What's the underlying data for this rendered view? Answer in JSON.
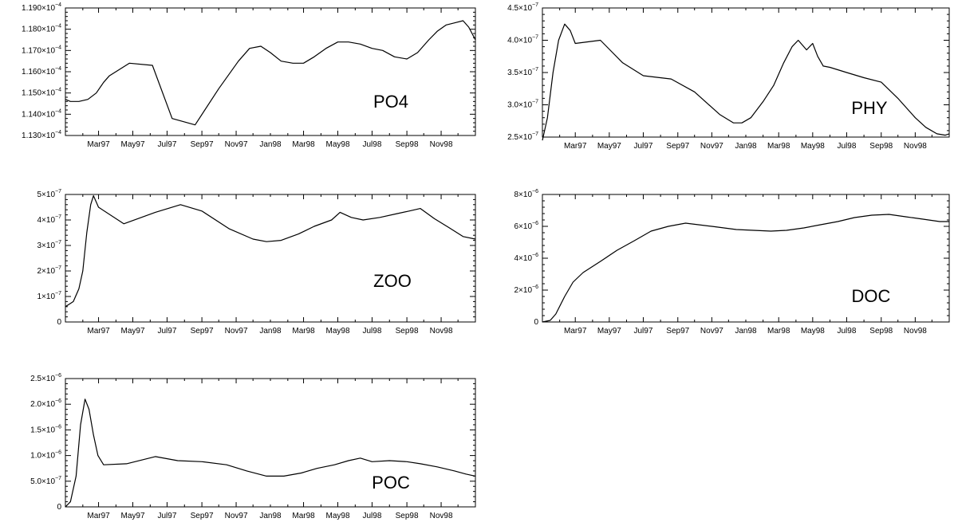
{
  "chart_data": [
    {
      "type": "line",
      "label": "PO4",
      "x_tick_labels": [
        "Mar97",
        "May97",
        "Jul97",
        "Sep97",
        "Nov97",
        "Jan98",
        "Mar98",
        "May98",
        "Jul98",
        "Sep98",
        "Nov98"
      ],
      "y_tick_labels": [
        {
          "m": "1.130",
          "e": "-4"
        },
        {
          "m": "1.140",
          "e": "-4"
        },
        {
          "m": "1.150",
          "e": "-4"
        },
        {
          "m": "1.160",
          "e": "-4"
        },
        {
          "m": "1.170",
          "e": "-4"
        },
        {
          "m": "1.180",
          "e": "-4"
        },
        {
          "m": "1.190",
          "e": "-4"
        }
      ],
      "ylim": [
        0.000113,
        0.000119
      ],
      "xlim": [
        "1997-01-01",
        "1999-01-01"
      ],
      "x": [
        "1997-01-01",
        "1997-01-10",
        "1997-01-25",
        "1997-02-10",
        "1997-02-25",
        "1997-03-10",
        "1997-03-20",
        "1997-04-25",
        "1997-06-05",
        "1997-07-10",
        "1997-08-20",
        "1997-10-01",
        "1997-11-05",
        "1997-11-25",
        "1997-12-15",
        "1998-01-01",
        "1998-01-20",
        "1998-02-10",
        "1998-03-01",
        "1998-03-20",
        "1998-04-10",
        "1998-05-01",
        "1998-05-20",
        "1998-06-10",
        "1998-07-01",
        "1998-07-20",
        "1998-08-10",
        "1998-09-01",
        "1998-09-20",
        "1998-10-10",
        "1998-10-25",
        "1998-11-10",
        "1998-11-25",
        "1998-12-10",
        "1998-12-20",
        "1999-01-01"
      ],
      "y": [
        0.0001147,
        0.0001146,
        0.0001146,
        0.0001147,
        0.000115,
        0.0001155,
        0.0001158,
        0.0001164,
        0.0001163,
        0.0001138,
        0.0001135,
        0.0001152,
        0.0001165,
        0.0001171,
        0.0001172,
        0.0001169,
        0.0001165,
        0.0001164,
        0.0001164,
        0.0001167,
        0.0001171,
        0.0001174,
        0.0001174,
        0.0001173,
        0.0001171,
        0.000117,
        0.0001167,
        0.0001166,
        0.0001169,
        0.0001175,
        0.0001179,
        0.0001182,
        0.0001183,
        0.0001184,
        0.0001181,
        0.0001175
      ]
    },
    {
      "type": "line",
      "label": "PHY",
      "x_tick_labels": [
        "Mar97",
        "May97",
        "Jul97",
        "Sep97",
        "Nov97",
        "Jan98",
        "Mar98",
        "May98",
        "Jul98",
        "Sep98",
        "Nov98"
      ],
      "y_tick_labels": [
        {
          "m": "2.5",
          "e": "-7"
        },
        {
          "m": "3.0",
          "e": "-7"
        },
        {
          "m": "3.5",
          "e": "-7"
        },
        {
          "m": "4.0",
          "e": "-7"
        },
        {
          "m": "4.5",
          "e": "-7"
        }
      ],
      "ylim": [
        2.5e-07,
        4.5e-07
      ],
      "xlim": [
        "1997-01-01",
        "1999-01-01"
      ],
      "x": [
        "1997-01-01",
        "1997-01-10",
        "1997-01-20",
        "1997-01-30",
        "1997-02-10",
        "1997-02-20",
        "1997-03-01",
        "1997-04-15",
        "1997-05-25",
        "1997-07-01",
        "1997-08-20",
        "1997-10-01",
        "1997-11-15",
        "1997-12-10",
        "1997-12-25",
        "1998-01-10",
        "1998-02-01",
        "1998-02-20",
        "1998-03-10",
        "1998-03-25",
        "1998-04-05",
        "1998-04-20",
        "1998-05-01",
        "1998-05-10",
        "1998-05-20",
        "1998-06-01",
        "1998-07-01",
        "1998-08-01",
        "1998-09-01",
        "1998-10-01",
        "1998-11-01",
        "1998-11-20",
        "1998-12-10",
        "1998-12-25",
        "1999-01-01"
      ],
      "y": [
        2.45e-07,
        2.8e-07,
        3.5e-07,
        4e-07,
        4.25e-07,
        4.15e-07,
        3.95e-07,
        4e-07,
        3.65e-07,
        3.45e-07,
        3.4e-07,
        3.2e-07,
        2.85e-07,
        2.72e-07,
        2.72e-07,
        2.8e-07,
        3.05e-07,
        3.3e-07,
        3.65e-07,
        3.9e-07,
        4e-07,
        3.85e-07,
        3.95e-07,
        3.75e-07,
        3.6e-07,
        3.58e-07,
        3.5e-07,
        3.42e-07,
        3.35e-07,
        3.1e-07,
        2.8e-07,
        2.65e-07,
        2.55e-07,
        2.53e-07,
        2.55e-07
      ]
    },
    {
      "type": "line",
      "label": "ZOO",
      "x_tick_labels": [
        "Mar97",
        "May97",
        "Jul97",
        "Sep97",
        "Nov97",
        "Jan98",
        "Mar98",
        "May98",
        "Jul98",
        "Sep98",
        "Nov98"
      ],
      "y_tick_labels": [
        {
          "m": "0",
          "e": ""
        },
        {
          "m": "1×10",
          "e": "-7"
        },
        {
          "m": "2×10",
          "e": "-7"
        },
        {
          "m": "3×10",
          "e": "-7"
        },
        {
          "m": "4×10",
          "e": "-7"
        },
        {
          "m": "5×10",
          "e": "-7"
        }
      ],
      "ylim": [
        0,
        5e-07
      ],
      "xlim": [
        "1997-01-01",
        "1999-01-01"
      ],
      "x": [
        "1997-01-01",
        "1997-01-15",
        "1997-01-25",
        "1997-02-01",
        "1997-02-08",
        "1997-02-15",
        "1997-02-20",
        "1997-03-01",
        "1997-04-15",
        "1997-06-10",
        "1997-07-25",
        "1997-09-01",
        "1997-10-20",
        "1997-12-01",
        "1997-12-25",
        "1998-01-20",
        "1998-02-20",
        "1998-03-20",
        "1998-04-20",
        "1998-05-05",
        "1998-05-25",
        "1998-06-15",
        "1998-07-15",
        "1998-08-15",
        "1998-09-05",
        "1998-09-25",
        "1998-10-20",
        "1998-11-15",
        "1998-12-10",
        "1999-01-01"
      ],
      "y": [
        6e-08,
        8e-08,
        1.3e-07,
        2e-07,
        3.5e-07,
        4.6e-07,
        4.95e-07,
        4.5e-07,
        3.85e-07,
        4.3e-07,
        4.6e-07,
        4.35e-07,
        3.65e-07,
        3.25e-07,
        3.15e-07,
        3.2e-07,
        3.45e-07,
        3.75e-07,
        4e-07,
        4.3e-07,
        4.1e-07,
        4e-07,
        4.1e-07,
        4.25e-07,
        4.35e-07,
        4.45e-07,
        4.05e-07,
        3.7e-07,
        3.35e-07,
        3.25e-07
      ]
    },
    {
      "type": "line",
      "label": "DOC",
      "x_tick_labels": [
        "Mar97",
        "May97",
        "Jul97",
        "Sep97",
        "Nov97",
        "Jan98",
        "Mar98",
        "May98",
        "Jul98",
        "Sep98",
        "Nov98"
      ],
      "y_tick_labels": [
        {
          "m": "0",
          "e": ""
        },
        {
          "m": "2×10",
          "e": "-6"
        },
        {
          "m": "4×10",
          "e": "-6"
        },
        {
          "m": "6×10",
          "e": "-6"
        },
        {
          "m": "8×10",
          "e": "-6"
        }
      ],
      "ylim": [
        0,
        8e-06
      ],
      "xlim": [
        "1997-01-01",
        "1999-01-01"
      ],
      "x": [
        "1997-01-01",
        "1997-01-15",
        "1997-01-25",
        "1997-02-10",
        "1997-02-25",
        "1997-03-15",
        "1997-04-15",
        "1997-05-15",
        "1997-06-15",
        "1997-07-15",
        "1997-08-15",
        "1997-09-15",
        "1997-11-01",
        "1997-12-15",
        "1998-01-15",
        "1998-02-15",
        "1998-03-15",
        "1998-04-15",
        "1998-05-15",
        "1998-06-15",
        "1998-07-15",
        "1998-08-15",
        "1998-09-15",
        "1998-10-15",
        "1998-11-15",
        "1998-12-15",
        "1999-01-01"
      ],
      "y": [
        0,
        1e-07,
        5e-07,
        1.6e-06,
        2.5e-06,
        3.1e-06,
        3.8e-06,
        4.5e-06,
        5.1e-06,
        5.7e-06,
        6e-06,
        6.2e-06,
        6e-06,
        5.8e-06,
        5.75e-06,
        5.7e-06,
        5.75e-06,
        5.9e-06,
        6.1e-06,
        6.3e-06,
        6.55e-06,
        6.7e-06,
        6.75e-06,
        6.6e-06,
        6.45e-06,
        6.3e-06,
        6.3e-06
      ]
    },
    {
      "type": "line",
      "label": "POC",
      "x_tick_labels": [
        "Mar97",
        "May97",
        "Jul97",
        "Sep97",
        "Nov97",
        "Jan98",
        "Mar98",
        "May98",
        "Jul98",
        "Sep98",
        "Nov98"
      ],
      "y_tick_labels": [
        {
          "m": "0",
          "e": ""
        },
        {
          "m": "5.0×10",
          "e": "-7"
        },
        {
          "m": "1.0×10",
          "e": "-6"
        },
        {
          "m": "1.5×10",
          "e": "-6"
        },
        {
          "m": "2.0×10",
          "e": "-6"
        },
        {
          "m": "2.5×10",
          "e": "-6"
        }
      ],
      "ylim": [
        0,
        2.5e-06
      ],
      "xlim": [
        "1997-01-01",
        "1999-01-01"
      ],
      "x": [
        "1997-01-01",
        "1997-01-10",
        "1997-01-20",
        "1997-01-28",
        "1997-02-05",
        "1997-02-12",
        "1997-02-20",
        "1997-02-28",
        "1997-03-10",
        "1997-04-20",
        "1997-06-10",
        "1997-07-20",
        "1997-09-01",
        "1997-10-15",
        "1997-11-20",
        "1997-12-25",
        "1998-01-25",
        "1998-02-25",
        "1998-03-25",
        "1998-04-25",
        "1998-05-20",
        "1998-06-10",
        "1998-07-01",
        "1998-08-01",
        "1998-09-01",
        "1998-09-25",
        "1998-10-25",
        "1998-11-25",
        "1998-12-15",
        "1999-01-01"
      ],
      "y": [
        0,
        1e-07,
        6e-07,
        1.6e-06,
        2.1e-06,
        1.9e-06,
        1.4e-06,
        1e-06,
        8.2e-07,
        8.4e-07,
        9.8e-07,
        9e-07,
        8.8e-07,
        8.2e-07,
        7e-07,
        6e-07,
        6e-07,
        6.6e-07,
        7.5e-07,
        8.2e-07,
        9e-07,
        9.5e-07,
        8.8e-07,
        9e-07,
        8.8e-07,
        8.4e-07,
        7.8e-07,
        7e-07,
        6.4e-07,
        6e-07
      ]
    }
  ]
}
